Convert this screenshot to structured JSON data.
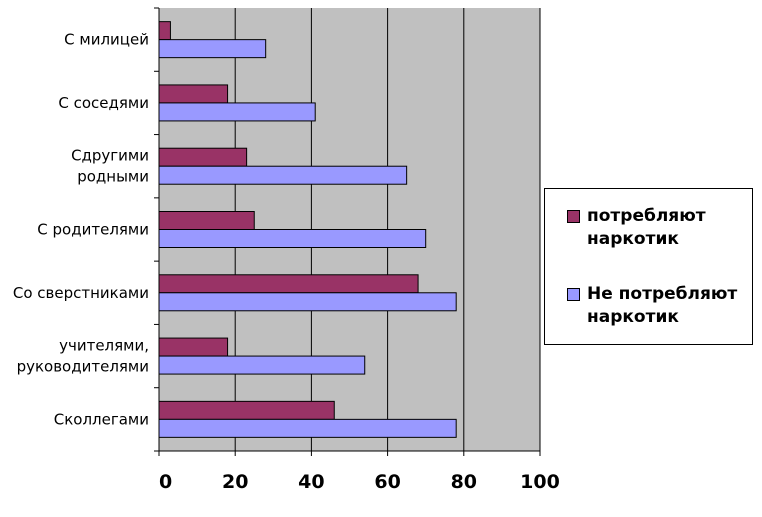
{
  "chart_data": {
    "type": "bar",
    "orientation": "horizontal",
    "categories": [
      "С милицей",
      "С соседями",
      "Сдругими родными",
      "С родителями",
      "Со сверстниками",
      "учителями, руководителями",
      "Сколлегами"
    ],
    "category_lines": [
      [
        "С милицей"
      ],
      [
        "С соседями"
      ],
      [
        "Сдругими",
        "родными"
      ],
      [
        "С родителями"
      ],
      [
        "Со сверстниками"
      ],
      [
        "учителями,",
        "руководителями"
      ],
      [
        "Сколлегами"
      ]
    ],
    "series": [
      {
        "name": "потребляют наркотик",
        "values": [
          3,
          18,
          23,
          25,
          68,
          18,
          46
        ],
        "color": "#993366"
      },
      {
        "name": "Не потребляют наркотик",
        "values": [
          28,
          41,
          65,
          70,
          78,
          54,
          78
        ],
        "color": "#9999ff"
      }
    ],
    "legend_lines": [
      [
        "потребляют",
        "наркотик"
      ],
      [
        "Не потребляют",
        "наркотик"
      ]
    ],
    "xlim": [
      0,
      100
    ],
    "xticks": [
      0,
      20,
      40,
      60,
      80,
      100
    ],
    "grid": true,
    "legend_position": "right",
    "plot_background": "#c0c0c0"
  }
}
